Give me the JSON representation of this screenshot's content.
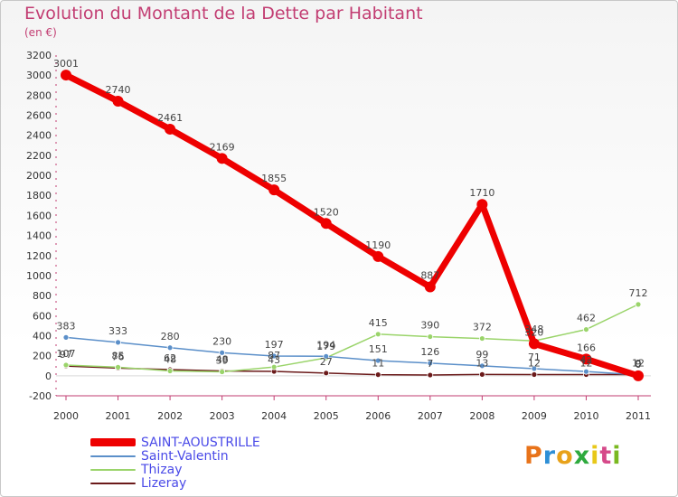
{
  "chart_data": {
    "type": "line",
    "title": "Evolution du Montant de la Dette par Habitant",
    "subtitle": "(en €)",
    "xlabel": "",
    "ylabel": "",
    "x": [
      "2000",
      "2001",
      "2002",
      "2003",
      "2004",
      "2005",
      "2006",
      "2007",
      "2008",
      "2009",
      "2010",
      "2011"
    ],
    "ylim": [
      -200,
      3200
    ],
    "yticks": [
      -200,
      0,
      200,
      400,
      600,
      800,
      1000,
      1200,
      1400,
      1600,
      1800,
      2000,
      2200,
      2400,
      2600,
      2800,
      3000,
      3200
    ],
    "series": [
      {
        "name": "Lizeray",
        "color": "#6b1a1a",
        "width": 1.5,
        "values": [
          97,
          76,
          62,
          48,
          43,
          27,
          11,
          7,
          13,
          12,
          12,
          12
        ],
        "labels": [
          "97",
          "76",
          "62",
          "48",
          "43",
          "27",
          "11",
          "7",
          "13",
          "12",
          "12",
          "12"
        ]
      },
      {
        "name": "Thizay",
        "color": "#9ad46a",
        "width": 1.5,
        "values": [
          107,
          85,
          48,
          39,
          87,
          179,
          415,
          390,
          372,
          348,
          462,
          712
        ],
        "labels": [
          "107",
          "85",
          "48",
          "39",
          "87",
          "179",
          "415",
          "390",
          "372",
          "348",
          "462",
          "712"
        ]
      },
      {
        "name": "Saint-Valentin",
        "color": "#5b8fc9",
        "width": 1.5,
        "values": [
          383,
          333,
          280,
          230,
          197,
          194,
          151,
          126,
          99,
          71,
          42,
          9
        ],
        "labels": [
          "383",
          "333",
          "280",
          "230",
          "197",
          "194",
          "151",
          "126",
          "99",
          "71",
          "42",
          "9"
        ]
      },
      {
        "name": "SAINT-AOUSTRILLE",
        "color": "#ee0000",
        "width": 7,
        "values": [
          3001,
          2740,
          2461,
          2169,
          1855,
          1520,
          1190,
          887,
          1710,
          320,
          166,
          0
        ],
        "labels": [
          "3001",
          "2740",
          "2461",
          "2169",
          "1855",
          "1520",
          "1190",
          "887",
          "1710",
          "320",
          "166",
          "0"
        ]
      }
    ],
    "legend_position": "bottom-left",
    "legend": [
      "SAINT-AOUSTRILLE",
      "Saint-Valentin",
      "Thizay",
      "Lizeray"
    ]
  },
  "legend_colors": [
    "#ee0000",
    "#5b8fc9",
    "#9ad46a",
    "#6b1a1a"
  ],
  "logo": {
    "letters": [
      "P",
      "r",
      "o",
      "x",
      "i",
      "t",
      "i"
    ],
    "colors": [
      "#e8731a",
      "#2e8fd6",
      "#e8a21a",
      "#2eaa3e",
      "#e8c81a",
      "#d64a8a",
      "#7ab820"
    ]
  }
}
